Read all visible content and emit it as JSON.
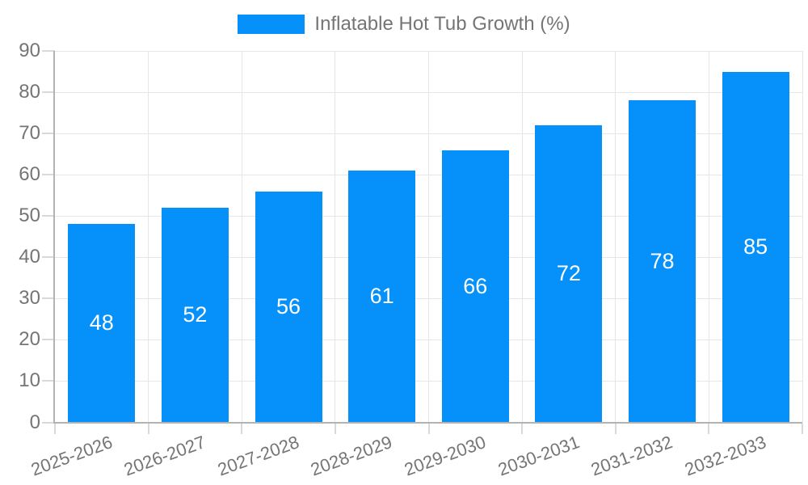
{
  "chart_data": {
    "type": "bar",
    "legend_label": "Inflatable Hot Tub Growth (%)",
    "categories": [
      "2025-2026",
      "2026-2027",
      "2027-2028",
      "2028-2029",
      "2029-2030",
      "2030-2031",
      "2031-2032",
      "2032-2033"
    ],
    "values": [
      48,
      52,
      56,
      61,
      66,
      72,
      78,
      85
    ],
    "yticks": [
      0,
      10,
      20,
      30,
      40,
      50,
      60,
      70,
      80,
      90
    ],
    "ylim": [
      0,
      90
    ],
    "grid": true,
    "legend_position": "top",
    "colors": {
      "bar": "#0591f9",
      "value_label": "#ffffff",
      "axis_text": "#757575",
      "grid_line": "#e6e6e6",
      "tick_line": "#d9d9d9",
      "axis_line": "#b3b3b3",
      "background": "#ffffff"
    }
  }
}
